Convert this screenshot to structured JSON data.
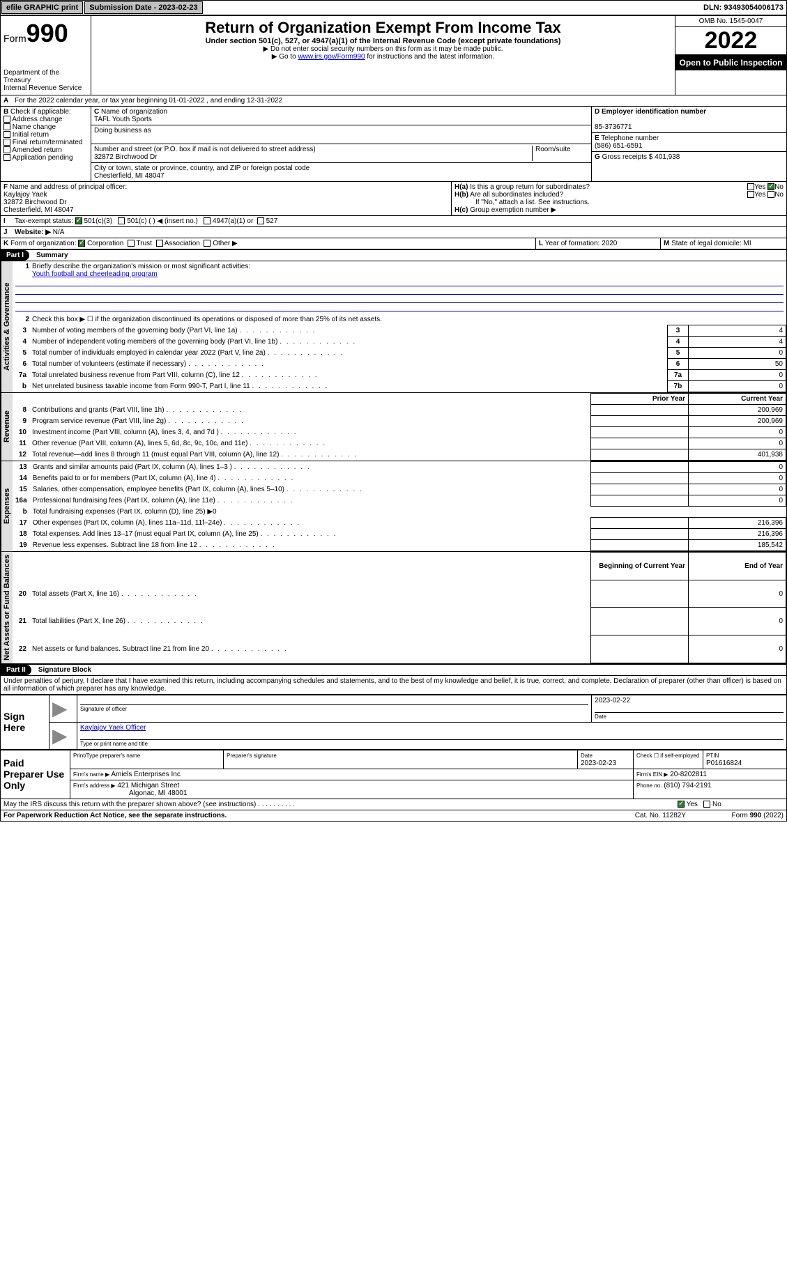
{
  "topbar": {
    "efile": "efile GRAPHIC print",
    "submission_label": "Submission Date - 2023-02-23",
    "dln": "DLN: 93493054006173"
  },
  "header": {
    "form_word": "Form",
    "form_num": "990",
    "dept": "Department of the Treasury",
    "irs": "Internal Revenue Service",
    "title": "Return of Organization Exempt From Income Tax",
    "sub1": "Under section 501(c), 527, or 4947(a)(1) of the Internal Revenue Code (except private foundations)",
    "sub2": "Do not enter social security numbers on this form as it may be made public.",
    "sub3_pre": "Go to ",
    "sub3_link": "www.irs.gov/Form990",
    "sub3_post": " for instructions and the latest information.",
    "omb": "OMB No. 1545-0047",
    "year": "2022",
    "inspect": "Open to Public Inspection"
  },
  "A": {
    "text": "For the 2022 calendar year, or tax year beginning 01-01-2022   , and ending 12-31-2022"
  },
  "B": {
    "label": "Check if applicable:",
    "opts": [
      "Address change",
      "Name change",
      "Initial return",
      "Final return/terminated",
      "Amended return",
      "Application pending"
    ]
  },
  "C": {
    "name_label": "Name of organization",
    "name": "TAFL Youth Sports",
    "dba_label": "Doing business as",
    "addr_label": "Number and street (or P.O. box if mail is not delivered to street address)",
    "room_label": "Room/suite",
    "addr": "32872 Birchwood Dr",
    "city_label": "City or town, state or province, country, and ZIP or foreign postal code",
    "city": "Chesterfield, MI  48047"
  },
  "D": {
    "label": "Employer identification number",
    "val": "85-3736771"
  },
  "E": {
    "label": "Telephone number",
    "val": "(586) 651-6591"
  },
  "G": {
    "label": "Gross receipts $",
    "val": "401,938"
  },
  "F": {
    "label": "Name and address of principal officer:",
    "name": "Kaylajoy Yaek",
    "addr": "32872 Birchwood Dr",
    "city": "Chesterfield, MI  48047"
  },
  "H": {
    "a": "Is this a group return for subordinates?",
    "b": "Are all subordinates included?",
    "b_note": "If \"No,\" attach a list. See instructions.",
    "c": "Group exemption number ▶"
  },
  "I": {
    "label": "Tax-exempt status:",
    "o1": "501(c)(3)",
    "o2": "501(c) ( ) ◀ (insert no.)",
    "o3": "4947(a)(1) or",
    "o4": "527"
  },
  "J": {
    "label": "Website: ▶",
    "val": "N/A"
  },
  "K": {
    "label": "Form of organization:",
    "o1": "Corporation",
    "o2": "Trust",
    "o3": "Association",
    "o4": "Other ▶"
  },
  "L": {
    "label": "Year of formation:",
    "val": "2020"
  },
  "M": {
    "label": "State of legal domicile:",
    "val": "MI"
  },
  "part1": {
    "title": "Part I",
    "name": "Summary",
    "q1": "Briefly describe the organization's mission or most significant activities:",
    "q1_ans": "Youth football and cheerleading program",
    "q2": "Check this box ▶ ☐  if the organization discontinued its operations or disposed of more than 25% of its net assets.",
    "lines_gov": [
      {
        "n": "3",
        "t": "Number of voting members of the governing body (Part VI, line 1a)",
        "box": "3",
        "v": "4"
      },
      {
        "n": "4",
        "t": "Number of independent voting members of the governing body (Part VI, line 1b)",
        "box": "4",
        "v": "4"
      },
      {
        "n": "5",
        "t": "Total number of individuals employed in calendar year 2022 (Part V, line 2a)",
        "box": "5",
        "v": "0"
      },
      {
        "n": "6",
        "t": "Total number of volunteers (estimate if necessary)",
        "box": "6",
        "v": "50"
      },
      {
        "n": "7a",
        "t": "Total unrelated business revenue from Part VIII, column (C), line 12",
        "box": "7a",
        "v": "0"
      },
      {
        "n": "b",
        "t": "Net unrelated business taxable income from Form 990-T, Part I, line 11",
        "box": "7b",
        "v": "0"
      }
    ],
    "hdr_prior": "Prior Year",
    "hdr_current": "Current Year",
    "lines_rev": [
      {
        "n": "8",
        "t": "Contributions and grants (Part VIII, line 1h)",
        "p": "",
        "c": "200,969"
      },
      {
        "n": "9",
        "t": "Program service revenue (Part VIII, line 2g)",
        "p": "",
        "c": "200,969"
      },
      {
        "n": "10",
        "t": "Investment income (Part VIII, column (A), lines 3, 4, and 7d )",
        "p": "",
        "c": "0"
      },
      {
        "n": "11",
        "t": "Other revenue (Part VIII, column (A), lines 5, 6d, 8c, 9c, 10c, and 11e)",
        "p": "",
        "c": "0"
      },
      {
        "n": "12",
        "t": "Total revenue—add lines 8 through 11 (must equal Part VIII, column (A), line 12)",
        "p": "",
        "c": "401,938"
      }
    ],
    "lines_exp": [
      {
        "n": "13",
        "t": "Grants and similar amounts paid (Part IX, column (A), lines 1–3 )",
        "p": "",
        "c": "0"
      },
      {
        "n": "14",
        "t": "Benefits paid to or for members (Part IX, column (A), line 4)",
        "p": "",
        "c": "0"
      },
      {
        "n": "15",
        "t": "Salaries, other compensation, employee benefits (Part IX, column (A), lines 5–10)",
        "p": "",
        "c": "0"
      },
      {
        "n": "16a",
        "t": "Professional fundraising fees (Part IX, column (A), line 11e)",
        "p": "",
        "c": "0"
      },
      {
        "n": "b",
        "t": "Total fundraising expenses (Part IX, column (D), line 25) ▶0",
        "p": null,
        "c": null
      },
      {
        "n": "17",
        "t": "Other expenses (Part IX, column (A), lines 11a–11d, 11f–24e)",
        "p": "",
        "c": "216,396"
      },
      {
        "n": "18",
        "t": "Total expenses. Add lines 13–17 (must equal Part IX, column (A), line 25)",
        "p": "",
        "c": "216,396"
      },
      {
        "n": "19",
        "t": "Revenue less expenses. Subtract line 18 from line 12",
        "p": "",
        "c": "185,542"
      }
    ],
    "hdr_begin": "Beginning of Current Year",
    "hdr_end": "End of Year",
    "lines_net": [
      {
        "n": "20",
        "t": "Total assets (Part X, line 16)",
        "p": "",
        "c": "0"
      },
      {
        "n": "21",
        "t": "Total liabilities (Part X, line 26)",
        "p": "",
        "c": "0"
      },
      {
        "n": "22",
        "t": "Net assets or fund balances. Subtract line 21 from line 20",
        "p": "",
        "c": "0"
      }
    ],
    "vlabels": {
      "gov": "Activities & Governance",
      "rev": "Revenue",
      "exp": "Expenses",
      "net": "Net Assets or Fund Balances"
    }
  },
  "part2": {
    "title": "Part II",
    "name": "Signature Block",
    "decl": "Under penalties of perjury, I declare that I have examined this return, including accompanying schedules and statements, and to the best of my knowledge and belief, it is true, correct, and complete. Declaration of preparer (other than officer) is based on all information of which preparer has any knowledge.",
    "sign_here": "Sign Here",
    "sig_officer": "Signature of officer",
    "sig_date": "Date",
    "sig_date_val": "2023-02-22",
    "sig_name": "Kaylajoy Yaek Officer",
    "sig_name_label": "Type or print name and title",
    "paid": "Paid Preparer Use Only",
    "prep_name_label": "Print/Type preparer's name",
    "prep_sig_label": "Preparer's signature",
    "prep_date_label": "Date",
    "prep_date": "2023-02-23",
    "prep_check": "Check ☐ if self-employed",
    "ptin_label": "PTIN",
    "ptin": "P01616824",
    "firm_name_label": "Firm's name   ▶",
    "firm_name": "Amiels Enterprises Inc",
    "firm_ein_label": "Firm's EIN ▶",
    "firm_ein": "20-8202811",
    "firm_addr_label": "Firm's address ▶",
    "firm_addr": "421 Michigan Street",
    "firm_city": "Algonac, MI  48001",
    "firm_phone_label": "Phone no.",
    "firm_phone": "(810) 794-2191",
    "may_irs": "May the IRS discuss this return with the preparer shown above? (see instructions)",
    "paperwork": "For Paperwork Reduction Act Notice, see the separate instructions.",
    "catno": "Cat. No. 11282Y",
    "formfoot": "Form 990 (2022)"
  }
}
